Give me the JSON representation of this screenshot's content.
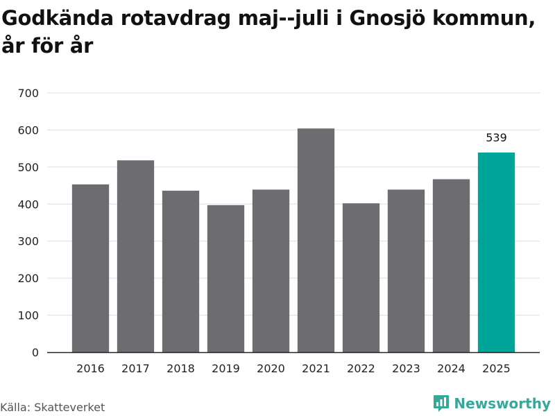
{
  "header": {
    "title": "Godkända rotavdrag maj--juli i Gnosjö kommun, år för år"
  },
  "footer": {
    "source": "Källa: Skatteverket",
    "brand": "Newsworthy",
    "brand_icon": "bar-chart-icon"
  },
  "colors": {
    "bar": "#6d6c71",
    "highlight": "#00a59a",
    "grid": "#dddddd",
    "axis": "#222222",
    "brand": "#35a89a"
  },
  "chart_data": {
    "type": "bar",
    "title": "Godkända rotavdrag maj--juli i Gnosjö kommun, år för år",
    "xlabel": "",
    "ylabel": "",
    "categories": [
      "2016",
      "2017",
      "2018",
      "2019",
      "2020",
      "2021",
      "2022",
      "2023",
      "2024",
      "2025"
    ],
    "values": [
      453,
      518,
      436,
      397,
      439,
      604,
      402,
      439,
      467,
      539
    ],
    "highlight_index": 9,
    "data_labels": [
      {
        "index": 9,
        "text": "539"
      }
    ],
    "ylim": [
      0,
      700
    ],
    "yticks": [
      0,
      100,
      200,
      300,
      400,
      500,
      600,
      700
    ],
    "grid": true,
    "legend": "none"
  }
}
